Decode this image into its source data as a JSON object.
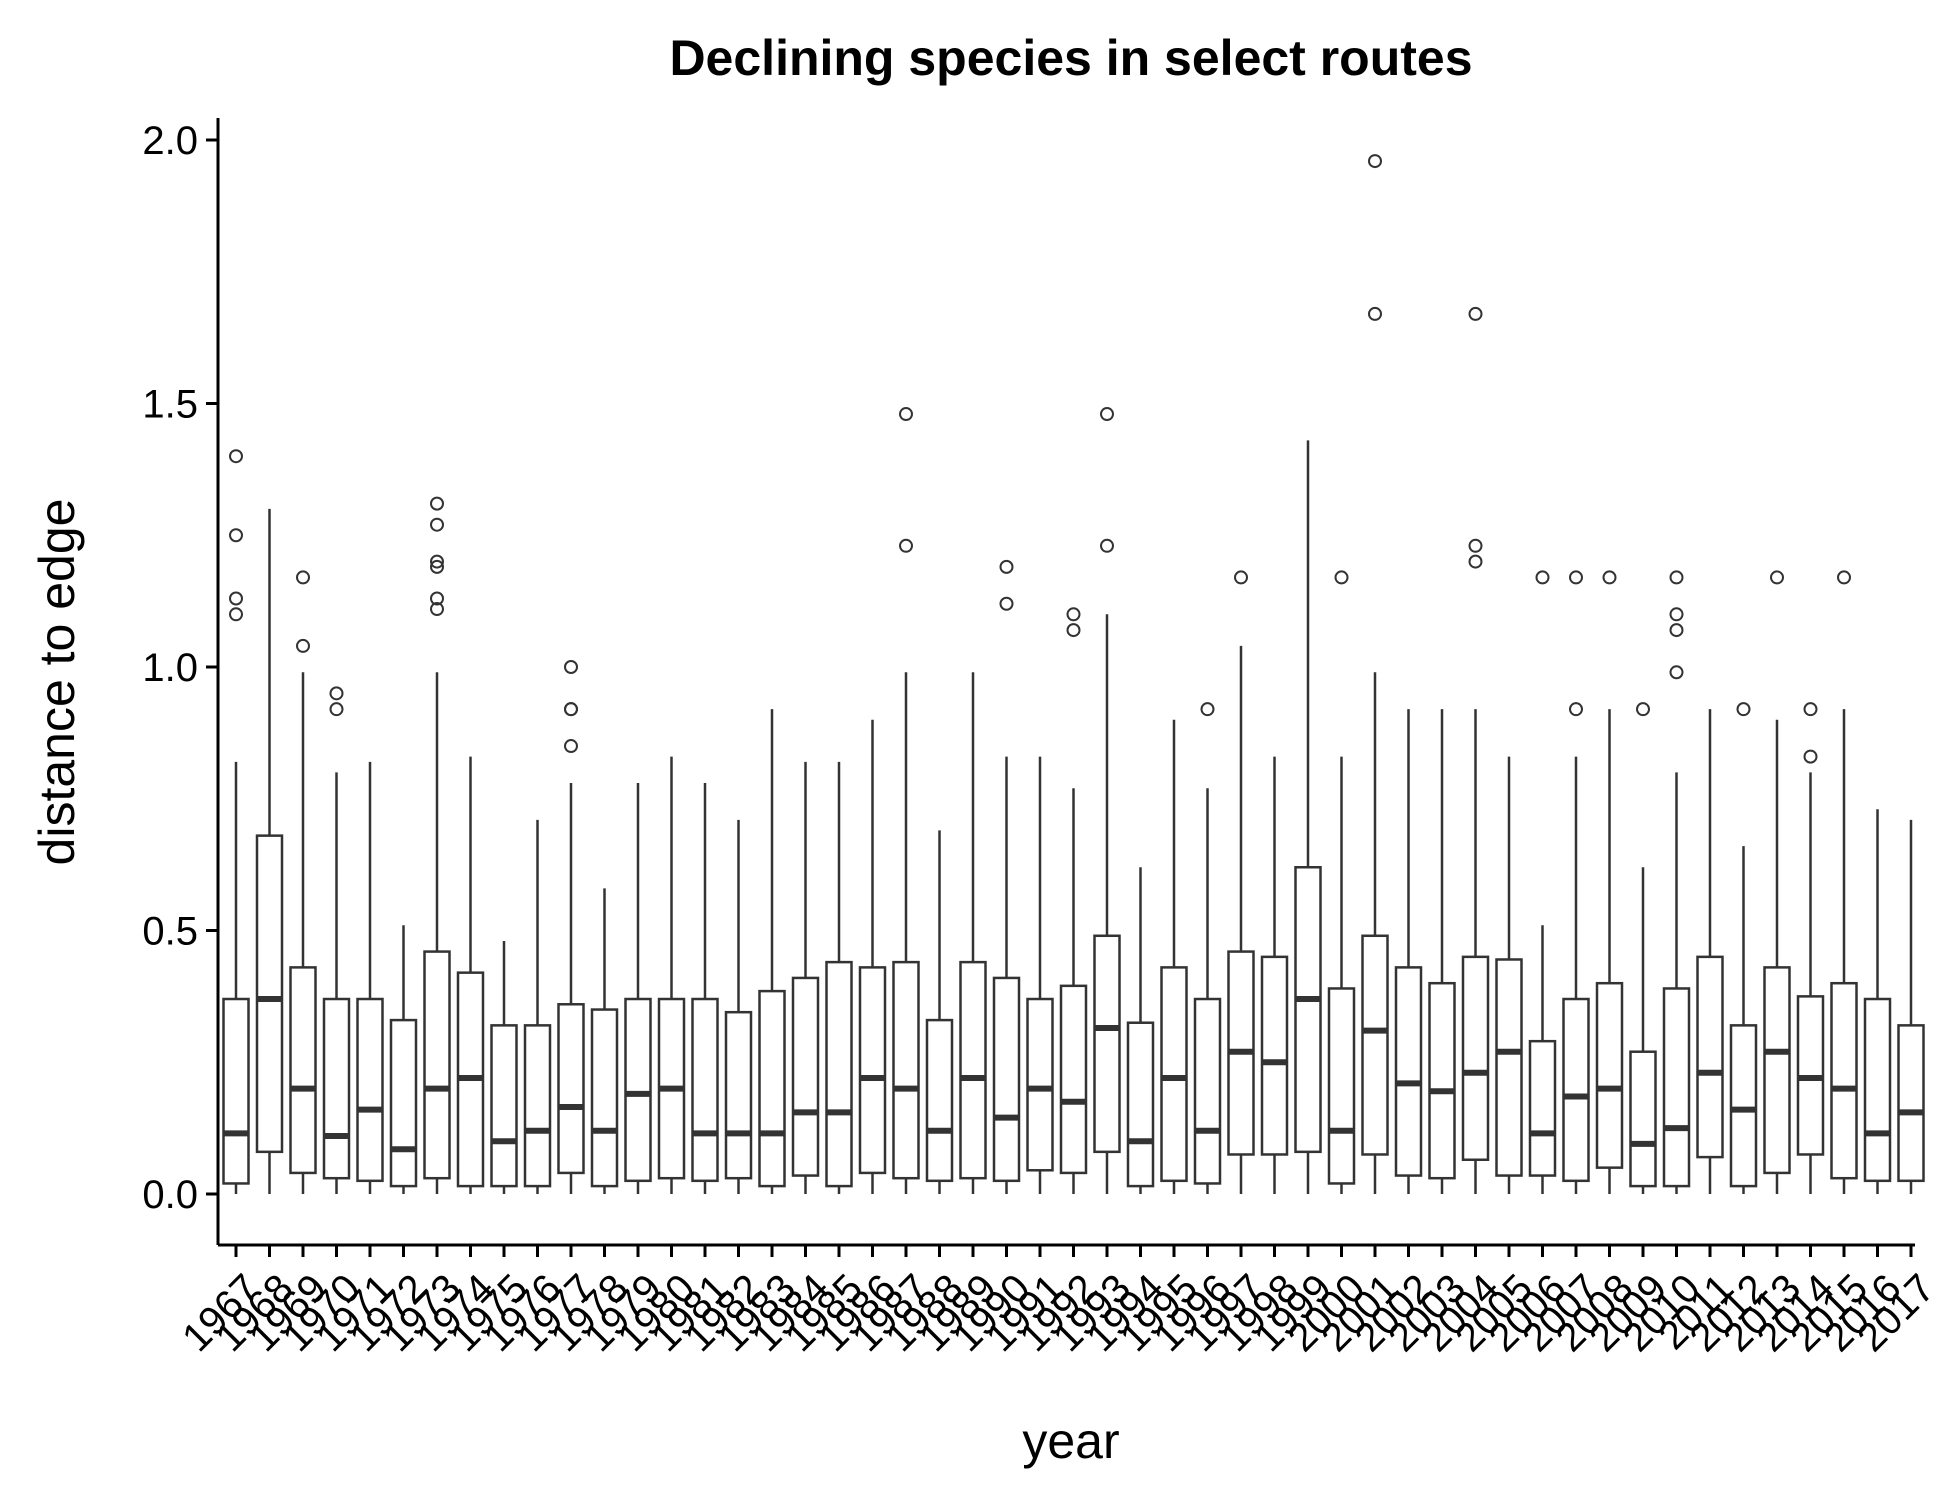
{
  "chart_data": {
    "type": "boxplot",
    "title": "Declining species in select routes",
    "xlabel": "year",
    "ylabel": "distance to edge",
    "ylim": [
      -0.1,
      2.05
    ],
    "yticks": [
      0.0,
      0.5,
      1.0,
      1.5,
      2.0
    ],
    "ytick_labels": [
      "0.0",
      "0.5",
      "1.0",
      "1.5",
      "2.0"
    ],
    "grid": false,
    "colors": {
      "box_fill": "#ffffff",
      "box_stroke": "#333333",
      "axis": "#000000"
    },
    "boxes": [
      {
        "year": "1967",
        "min": 0.0,
        "q1": 0.02,
        "median": 0.115,
        "q3": 0.37,
        "max": 0.82,
        "outliers": [
          1.1,
          1.13,
          1.25,
          1.4
        ]
      },
      {
        "year": "1968",
        "min": 0.0,
        "q1": 0.08,
        "median": 0.37,
        "q3": 0.68,
        "max": 1.3,
        "outliers": []
      },
      {
        "year": "1969",
        "min": 0.0,
        "q1": 0.04,
        "median": 0.2,
        "q3": 0.43,
        "max": 0.99,
        "outliers": [
          1.04,
          1.17
        ]
      },
      {
        "year": "1970",
        "min": 0.0,
        "q1": 0.03,
        "median": 0.11,
        "q3": 0.37,
        "max": 0.8,
        "outliers": [
          0.92,
          0.95
        ]
      },
      {
        "year": "1971",
        "min": 0.0,
        "q1": 0.025,
        "median": 0.16,
        "q3": 0.37,
        "max": 0.82,
        "outliers": []
      },
      {
        "year": "1972",
        "min": 0.0,
        "q1": 0.015,
        "median": 0.085,
        "q3": 0.33,
        "max": 0.51,
        "outliers": []
      },
      {
        "year": "1973",
        "min": 0.0,
        "q1": 0.03,
        "median": 0.2,
        "q3": 0.46,
        "max": 0.99,
        "outliers": [
          1.11,
          1.13,
          1.19,
          1.2,
          1.27,
          1.31
        ]
      },
      {
        "year": "1974",
        "min": 0.0,
        "q1": 0.015,
        "median": 0.22,
        "q3": 0.42,
        "max": 0.83,
        "outliers": []
      },
      {
        "year": "1975",
        "min": 0.0,
        "q1": 0.015,
        "median": 0.1,
        "q3": 0.32,
        "max": 0.48,
        "outliers": []
      },
      {
        "year": "1976",
        "min": 0.0,
        "q1": 0.015,
        "median": 0.12,
        "q3": 0.32,
        "max": 0.71,
        "outliers": []
      },
      {
        "year": "1977",
        "min": 0.0,
        "q1": 0.04,
        "median": 0.165,
        "q3": 0.36,
        "max": 0.78,
        "outliers": [
          0.85,
          0.92,
          0.92,
          1.0
        ]
      },
      {
        "year": "1978",
        "min": 0.0,
        "q1": 0.015,
        "median": 0.12,
        "q3": 0.35,
        "max": 0.58,
        "outliers": []
      },
      {
        "year": "1979",
        "min": 0.0,
        "q1": 0.025,
        "median": 0.19,
        "q3": 0.37,
        "max": 0.78,
        "outliers": []
      },
      {
        "year": "1980",
        "min": 0.0,
        "q1": 0.03,
        "median": 0.2,
        "q3": 0.37,
        "max": 0.83,
        "outliers": []
      },
      {
        "year": "1981",
        "min": 0.0,
        "q1": 0.025,
        "median": 0.115,
        "q3": 0.37,
        "max": 0.78,
        "outliers": []
      },
      {
        "year": "1982",
        "min": 0.0,
        "q1": 0.03,
        "median": 0.115,
        "q3": 0.345,
        "max": 0.71,
        "outliers": []
      },
      {
        "year": "1983",
        "min": 0.0,
        "q1": 0.015,
        "median": 0.115,
        "q3": 0.385,
        "max": 0.92,
        "outliers": []
      },
      {
        "year": "1984",
        "min": 0.0,
        "q1": 0.035,
        "median": 0.155,
        "q3": 0.41,
        "max": 0.82,
        "outliers": []
      },
      {
        "year": "1985",
        "min": 0.0,
        "q1": 0.015,
        "median": 0.155,
        "q3": 0.44,
        "max": 0.82,
        "outliers": []
      },
      {
        "year": "1986",
        "min": 0.0,
        "q1": 0.04,
        "median": 0.22,
        "q3": 0.43,
        "max": 0.9,
        "outliers": []
      },
      {
        "year": "1987",
        "min": 0.0,
        "q1": 0.03,
        "median": 0.2,
        "q3": 0.44,
        "max": 0.99,
        "outliers": [
          1.23,
          1.48
        ]
      },
      {
        "year": "1988",
        "min": 0.0,
        "q1": 0.025,
        "median": 0.12,
        "q3": 0.33,
        "max": 0.69,
        "outliers": []
      },
      {
        "year": "1989",
        "min": 0.0,
        "q1": 0.03,
        "median": 0.22,
        "q3": 0.44,
        "max": 0.99,
        "outliers": []
      },
      {
        "year": "1990",
        "min": 0.0,
        "q1": 0.025,
        "median": 0.145,
        "q3": 0.41,
        "max": 0.83,
        "outliers": [
          1.12,
          1.19
        ]
      },
      {
        "year": "1991",
        "min": 0.0,
        "q1": 0.045,
        "median": 0.2,
        "q3": 0.37,
        "max": 0.83,
        "outliers": []
      },
      {
        "year": "1992",
        "min": 0.0,
        "q1": 0.04,
        "median": 0.175,
        "q3": 0.395,
        "max": 0.77,
        "outliers": [
          1.07,
          1.1
        ]
      },
      {
        "year": "1993",
        "min": 0.0,
        "q1": 0.08,
        "median": 0.315,
        "q3": 0.49,
        "max": 1.1,
        "outliers": [
          1.23,
          1.48
        ]
      },
      {
        "year": "1994",
        "min": 0.0,
        "q1": 0.015,
        "median": 0.1,
        "q3": 0.325,
        "max": 0.62,
        "outliers": []
      },
      {
        "year": "1995",
        "min": 0.0,
        "q1": 0.025,
        "median": 0.22,
        "q3": 0.43,
        "max": 0.9,
        "outliers": []
      },
      {
        "year": "1996",
        "min": 0.0,
        "q1": 0.02,
        "median": 0.12,
        "q3": 0.37,
        "max": 0.77,
        "outliers": [
          0.92
        ]
      },
      {
        "year": "1997",
        "min": 0.0,
        "q1": 0.075,
        "median": 0.27,
        "q3": 0.46,
        "max": 1.04,
        "outliers": [
          1.17
        ]
      },
      {
        "year": "1998",
        "min": 0.0,
        "q1": 0.075,
        "median": 0.25,
        "q3": 0.45,
        "max": 0.83,
        "outliers": []
      },
      {
        "year": "1999",
        "min": 0.0,
        "q1": 0.08,
        "median": 0.37,
        "q3": 0.62,
        "max": 1.43,
        "outliers": []
      },
      {
        "year": "2000",
        "min": 0.0,
        "q1": 0.02,
        "median": 0.12,
        "q3": 0.39,
        "max": 0.83,
        "outliers": [
          1.17
        ]
      },
      {
        "year": "2001",
        "min": 0.0,
        "q1": 0.075,
        "median": 0.31,
        "q3": 0.49,
        "max": 0.99,
        "outliers": [
          1.67,
          1.96
        ]
      },
      {
        "year": "2002",
        "min": 0.0,
        "q1": 0.035,
        "median": 0.21,
        "q3": 0.43,
        "max": 0.92,
        "outliers": []
      },
      {
        "year": "2003",
        "min": 0.0,
        "q1": 0.03,
        "median": 0.195,
        "q3": 0.4,
        "max": 0.92,
        "outliers": []
      },
      {
        "year": "2004",
        "min": 0.0,
        "q1": 0.065,
        "median": 0.23,
        "q3": 0.45,
        "max": 0.92,
        "outliers": [
          1.2,
          1.23,
          1.67
        ]
      },
      {
        "year": "2005",
        "min": 0.0,
        "q1": 0.035,
        "median": 0.27,
        "q3": 0.445,
        "max": 0.83,
        "outliers": []
      },
      {
        "year": "2006",
        "min": 0.0,
        "q1": 0.035,
        "median": 0.115,
        "q3": 0.29,
        "max": 0.51,
        "outliers": [
          1.17
        ]
      },
      {
        "year": "2007",
        "min": 0.0,
        "q1": 0.025,
        "median": 0.185,
        "q3": 0.37,
        "max": 0.83,
        "outliers": [
          0.92,
          1.17
        ]
      },
      {
        "year": "2008",
        "min": 0.0,
        "q1": 0.05,
        "median": 0.2,
        "q3": 0.4,
        "max": 0.92,
        "outliers": [
          1.17
        ]
      },
      {
        "year": "2009",
        "min": 0.0,
        "q1": 0.015,
        "median": 0.095,
        "q3": 0.27,
        "max": 0.62,
        "outliers": [
          0.92
        ]
      },
      {
        "year": "2010",
        "min": 0.0,
        "q1": 0.015,
        "median": 0.125,
        "q3": 0.39,
        "max": 0.8,
        "outliers": [
          0.99,
          1.07,
          1.1,
          1.17
        ]
      },
      {
        "year": "2011",
        "min": 0.0,
        "q1": 0.07,
        "median": 0.23,
        "q3": 0.45,
        "max": 0.92,
        "outliers": []
      },
      {
        "year": "2012",
        "min": 0.0,
        "q1": 0.015,
        "median": 0.16,
        "q3": 0.32,
        "max": 0.66,
        "outliers": [
          0.92
        ]
      },
      {
        "year": "2013",
        "min": 0.0,
        "q1": 0.04,
        "median": 0.27,
        "q3": 0.43,
        "max": 0.9,
        "outliers": [
          1.17
        ]
      },
      {
        "year": "2014",
        "min": 0.0,
        "q1": 0.075,
        "median": 0.22,
        "q3": 0.375,
        "max": 0.8,
        "outliers": [
          0.83,
          0.92
        ]
      },
      {
        "year": "2015",
        "min": 0.0,
        "q1": 0.03,
        "median": 0.2,
        "q3": 0.4,
        "max": 0.92,
        "outliers": [
          1.17
        ]
      },
      {
        "year": "2016",
        "min": 0.0,
        "q1": 0.025,
        "median": 0.115,
        "q3": 0.37,
        "max": 0.73,
        "outliers": []
      },
      {
        "year": "2017",
        "min": 0.0,
        "q1": 0.025,
        "median": 0.155,
        "q3": 0.32,
        "max": 0.71,
        "outliers": []
      }
    ]
  }
}
